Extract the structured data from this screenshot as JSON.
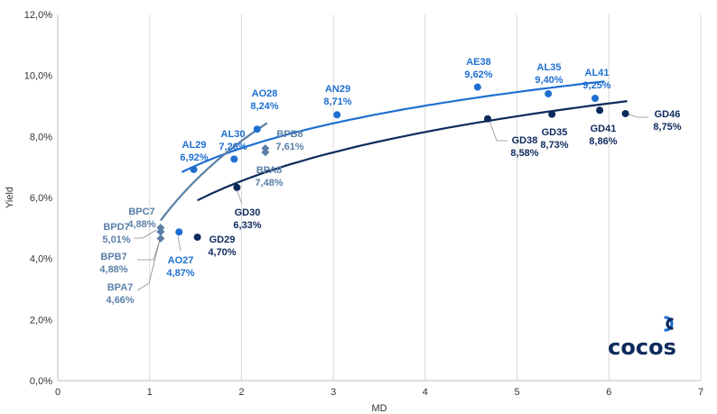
{
  "chart_data": {
    "type": "scatter",
    "title": "",
    "xlabel": "MD",
    "ylabel": "Yield",
    "xlim": [
      0,
      7
    ],
    "ylim": [
      0,
      12
    ],
    "x_ticks": [
      "0",
      "1",
      "2",
      "3",
      "4",
      "5",
      "6",
      "7"
    ],
    "y_ticks": [
      "0,0%",
      "2,0%",
      "4,0%",
      "6,0%",
      "8,0%",
      "10,0%",
      "12,0%"
    ],
    "grid": "vertical",
    "series": [
      {
        "key": "ley_ny",
        "color": "#1f6fd1",
        "marker": "circle",
        "points": [
          {
            "name": "AO27",
            "x": 1.32,
            "y": 4.87,
            "label": "4,87%"
          },
          {
            "name": "AL29",
            "x": 1.48,
            "y": 6.92,
            "label": "6,92%"
          },
          {
            "name": "AL30",
            "x": 1.92,
            "y": 7.26,
            "label": "7,26%"
          },
          {
            "name": "AO28",
            "x": 2.17,
            "y": 8.24,
            "label": "8,24%"
          },
          {
            "name": "AN29",
            "x": 3.04,
            "y": 8.71,
            "label": "8,71%"
          },
          {
            "name": "AE38",
            "x": 4.57,
            "y": 9.62,
            "label": "9,62%"
          },
          {
            "name": "AL35",
            "x": 5.34,
            "y": 9.4,
            "label": "9,40%"
          },
          {
            "name": "AL41",
            "x": 5.85,
            "y": 9.25,
            "label": "9,25%"
          }
        ]
      },
      {
        "key": "ley_local",
        "color": "#0d2a5c",
        "marker": "circle",
        "points": [
          {
            "name": "GD29",
            "x": 1.52,
            "y": 4.7,
            "label": "4,70%"
          },
          {
            "name": "GD30",
            "x": 1.95,
            "y": 6.33,
            "label": "6,33%"
          },
          {
            "name": "GD38",
            "x": 4.68,
            "y": 8.58,
            "label": "8,58%"
          },
          {
            "name": "GD35",
            "x": 5.38,
            "y": 8.73,
            "label": "8,73%"
          },
          {
            "name": "GD41",
            "x": 5.9,
            "y": 8.86,
            "label": "8,86%"
          },
          {
            "name": "GD46",
            "x": 6.18,
            "y": 8.75,
            "label": "8,75%"
          }
        ]
      },
      {
        "key": "bopreal",
        "color": "#5b7fa8",
        "marker": "diamond",
        "points": [
          {
            "name": "BPC7",
            "x": 1.12,
            "y": 4.88,
            "label": "4,88%"
          },
          {
            "name": "BPD7",
            "x": 1.12,
            "y": 5.01,
            "label": "5,01%"
          },
          {
            "name": "BPB7",
            "x": 1.12,
            "y": 4.88,
            "label": "4,88%"
          },
          {
            "name": "BPA7",
            "x": 1.12,
            "y": 4.66,
            "label": "4,66%"
          },
          {
            "name": "BPB8",
            "x": 2.26,
            "y": 7.61,
            "label": "7,61%"
          },
          {
            "name": "BPA8",
            "x": 2.26,
            "y": 7.48,
            "label": "7,48%"
          }
        ]
      }
    ],
    "trendlines": [
      {
        "color": "#1f6fd1",
        "a": 6.229,
        "b": 2.005,
        "x_range": [
          1.35,
          5.95
        ]
      },
      {
        "color": "#0d2a5c",
        "a": 4.937,
        "b": 2.315,
        "x_range": [
          1.52,
          6.2
        ]
      },
      {
        "color": "#5b7fa8",
        "a": 4.74,
        "b": 4.49,
        "x_range": [
          1.12,
          2.28
        ]
      }
    ]
  },
  "brand": {
    "logo_text": "cocos",
    "logo_color": "#0d2a5c",
    "accent_color": "#1f6fd1"
  }
}
